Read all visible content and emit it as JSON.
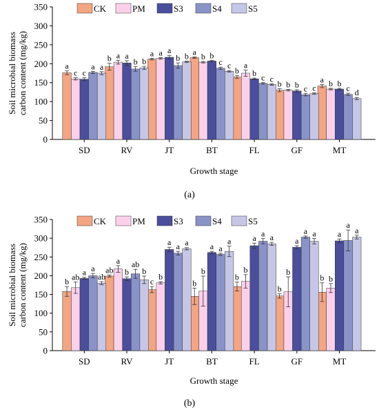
{
  "chart_data": [
    {
      "type": "bar",
      "panel_label": "(a)",
      "categories": [
        "SD",
        "RV",
        "JT",
        "BT",
        "FL",
        "GF",
        "MT"
      ],
      "xlabel": "Growth stage",
      "ylabel": "Soil microbial biomass carbon content (mg/kg)",
      "ylabel_lines": [
        "Soil microbial biomass",
        "carbon content (mg/kg)"
      ],
      "ylim": [
        0,
        350
      ],
      "yticks": [
        0,
        50,
        100,
        150,
        200,
        250,
        300,
        350
      ],
      "legend_position": "top",
      "series": [
        {
          "name": "CK",
          "color": "#f4a582",
          "values": [
            176,
            192,
            212,
            216,
            165,
            130,
            141
          ],
          "errors": [
            5,
            9,
            2,
            2,
            4,
            4,
            4
          ],
          "letters": [
            "a",
            "b",
            "a",
            "a",
            "b",
            "b",
            "a"
          ]
        },
        {
          "name": "PM",
          "color": "#fbd1ea",
          "values": [
            160,
            204,
            214,
            204,
            175,
            130,
            133
          ],
          "errors": [
            3,
            5,
            2,
            2,
            8,
            2,
            2
          ],
          "letters": [
            "c",
            "a",
            "a",
            "b",
            "a",
            "b",
            "b"
          ]
        },
        {
          "name": "S3",
          "color": "#4a4e9c",
          "values": [
            159,
            202,
            217,
            207,
            160,
            128,
            133
          ],
          "errors": [
            4,
            6,
            5,
            2,
            2,
            3,
            2
          ],
          "letters": [
            "c",
            "a",
            "a",
            "b",
            "b",
            "b",
            "b"
          ]
        },
        {
          "name": "S4",
          "color": "#8a93c8",
          "values": [
            177,
            186,
            195,
            188,
            148,
            118,
            119
          ],
          "errors": [
            3,
            6,
            7,
            3,
            2,
            3,
            3
          ],
          "letters": [
            "a",
            "b",
            "b",
            "c",
            "c",
            "c",
            "c"
          ]
        },
        {
          "name": "S5",
          "color": "#c6c6e6",
          "values": [
            175,
            189,
            205,
            180,
            145,
            121,
            108
          ],
          "errors": [
            4,
            4,
            2,
            2,
            2,
            2,
            3
          ],
          "letters": [
            "a",
            "b",
            "b",
            "c",
            "c",
            "c",
            "d"
          ]
        }
      ]
    },
    {
      "type": "bar",
      "panel_label": "(b)",
      "categories": [
        "SD",
        "RV",
        "JT",
        "BT",
        "FL",
        "GF",
        "MT"
      ],
      "xlabel": "Growth stage",
      "ylabel": "Soil microbial biomass carbon content (mg/kg)",
      "ylabel_lines": [
        "Soil microbial biomass",
        "carbon content (mg/kg)"
      ],
      "ylim": [
        0,
        350
      ],
      "yticks": [
        0,
        50,
        100,
        150,
        200,
        250,
        300,
        350
      ],
      "legend_position": "top",
      "series": [
        {
          "name": "CK",
          "color": "#f4a582",
          "values": [
            158,
            199,
            163,
            145,
            171,
            146,
            156
          ],
          "errors": [
            13,
            3,
            8,
            22,
            12,
            6,
            25
          ],
          "letters": [
            "b",
            "ab",
            "c",
            "b",
            "b",
            "b",
            "b"
          ]
        },
        {
          "name": "PM",
          "color": "#fbd1ea",
          "values": [
            168,
            218,
            181,
            159,
            185,
            157,
            167
          ],
          "errors": [
            15,
            9,
            3,
            40,
            18,
            40,
            12
          ],
          "letters": [
            "ab",
            "a",
            "b",
            "b",
            "b",
            "b",
            "b"
          ]
        },
        {
          "name": "S3",
          "color": "#4a4e9c",
          "values": [
            193,
            192,
            270,
            262,
            280,
            276,
            293
          ],
          "errors": [
            3,
            5,
            6,
            3,
            7,
            4,
            5
          ],
          "letters": [
            "a",
            "b",
            "a",
            "a",
            "a",
            "a",
            "a"
          ]
        },
        {
          "name": "S4",
          "color": "#8a93c8",
          "values": [
            200,
            205,
            260,
            257,
            292,
            303,
            294
          ],
          "errors": [
            6,
            12,
            5,
            3,
            7,
            3,
            28
          ],
          "letters": [
            "a",
            "ab",
            "a",
            "a",
            "a",
            "a",
            "a"
          ]
        },
        {
          "name": "S5",
          "color": "#c6c6e6",
          "values": [
            180,
            189,
            272,
            265,
            285,
            292,
            303
          ],
          "errors": [
            4,
            10,
            3,
            14,
            4,
            7,
            5
          ],
          "letters": [
            "ab",
            "b",
            "a",
            "a",
            "a",
            "a",
            "a"
          ]
        }
      ]
    }
  ]
}
